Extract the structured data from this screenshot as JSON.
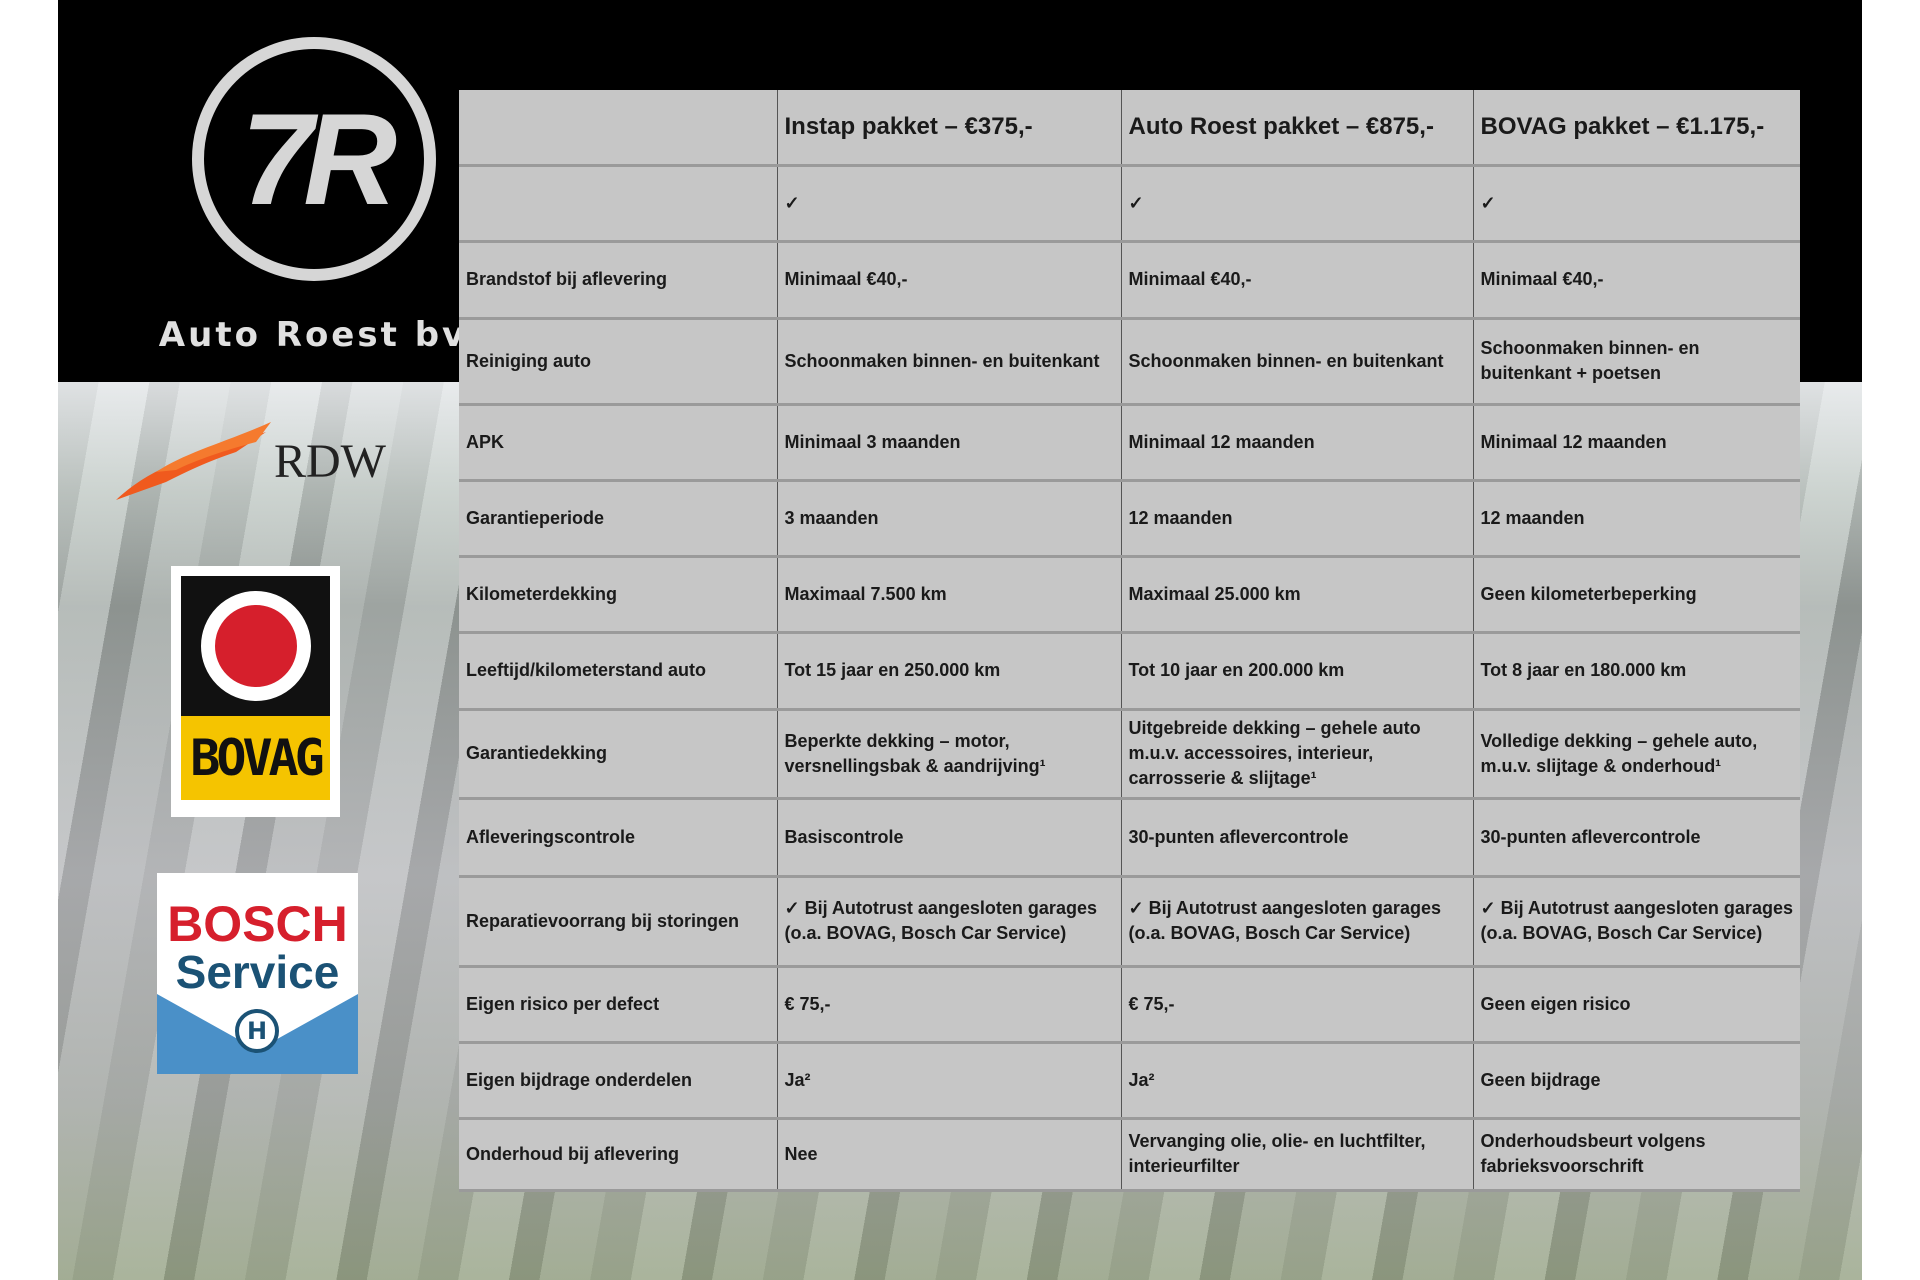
{
  "brand": {
    "name": "Auto Roest bv",
    "logo_glyph": "7R"
  },
  "badges": {
    "rdw": "RDW",
    "bovag": "BOVAG",
    "bosch_line1": "BOSCH",
    "bosch_line2": "Service"
  },
  "table": {
    "headers": [
      "",
      "Instap pakket – €375,-",
      "Auto Roest pakket – €875,-",
      "BOVAG pakket – €1.175,-"
    ],
    "rows": [
      [
        "",
        "✓",
        "✓",
        "✓"
      ],
      [
        "Brandstof bij aflevering",
        "Minimaal €40,-",
        "Minimaal €40,-",
        "Minimaal €40,-"
      ],
      [
        "Reiniging auto",
        "Schoonmaken binnen- en buitenkant",
        "Schoonmaken binnen- en buitenkant",
        "Schoonmaken binnen- en buitenkant + poetsen"
      ],
      [
        "APK",
        "Minimaal 3 maanden",
        "Minimaal 12 maanden",
        "Minimaal 12 maanden"
      ],
      [
        "Garantieperiode",
        "3 maanden",
        "12 maanden",
        "12 maanden"
      ],
      [
        "Kilometerdekking",
        "Maximaal 7.500 km",
        "Maximaal 25.000 km",
        "Geen kilometerbeperking"
      ],
      [
        "Leeftijd/kilometerstand auto",
        "Tot 15 jaar en 250.000 km",
        "Tot 10 jaar en 200.000 km",
        "Tot 8 jaar en 180.000 km"
      ],
      [
        "Garantiedekking",
        "Beperkte dekking – motor, versnellingsbak & aandrijving¹",
        "Uitgebreide dekking – gehele auto m.u.v. accessoires, interieur, carrosserie & slijtage¹",
        "Volledige dekking – gehele auto, m.u.v. slijtage & onderhoud¹"
      ],
      [
        "Afleveringscontrole",
        "Basiscontrole",
        "30-punten aflevercontrole",
        "30-punten aflevercontrole"
      ],
      [
        "Reparatievoorrang bij storingen",
        "✓ Bij Autotrust aangesloten garages (o.a. BOVAG, Bosch Car Service)",
        "✓ Bij Autotrust aangesloten garages (o.a. BOVAG, Bosch Car Service)",
        "✓ Bij Autotrust aangesloten garages (o.a. BOVAG, Bosch Car Service)"
      ],
      [
        "Eigen risico per defect",
        "€ 75,-",
        "€ 75,-",
        "Geen eigen risico"
      ],
      [
        "Eigen bijdrage onderdelen",
        "Ja²",
        "Ja²",
        "Geen bijdrage"
      ],
      [
        "Onderhoud bij aflevering",
        "Nee",
        "Vervanging olie, olie- en luchtfilter, interieurfilter",
        "Onderhoudsbeurt volgens fabrieksvoorschrift"
      ]
    ]
  }
}
